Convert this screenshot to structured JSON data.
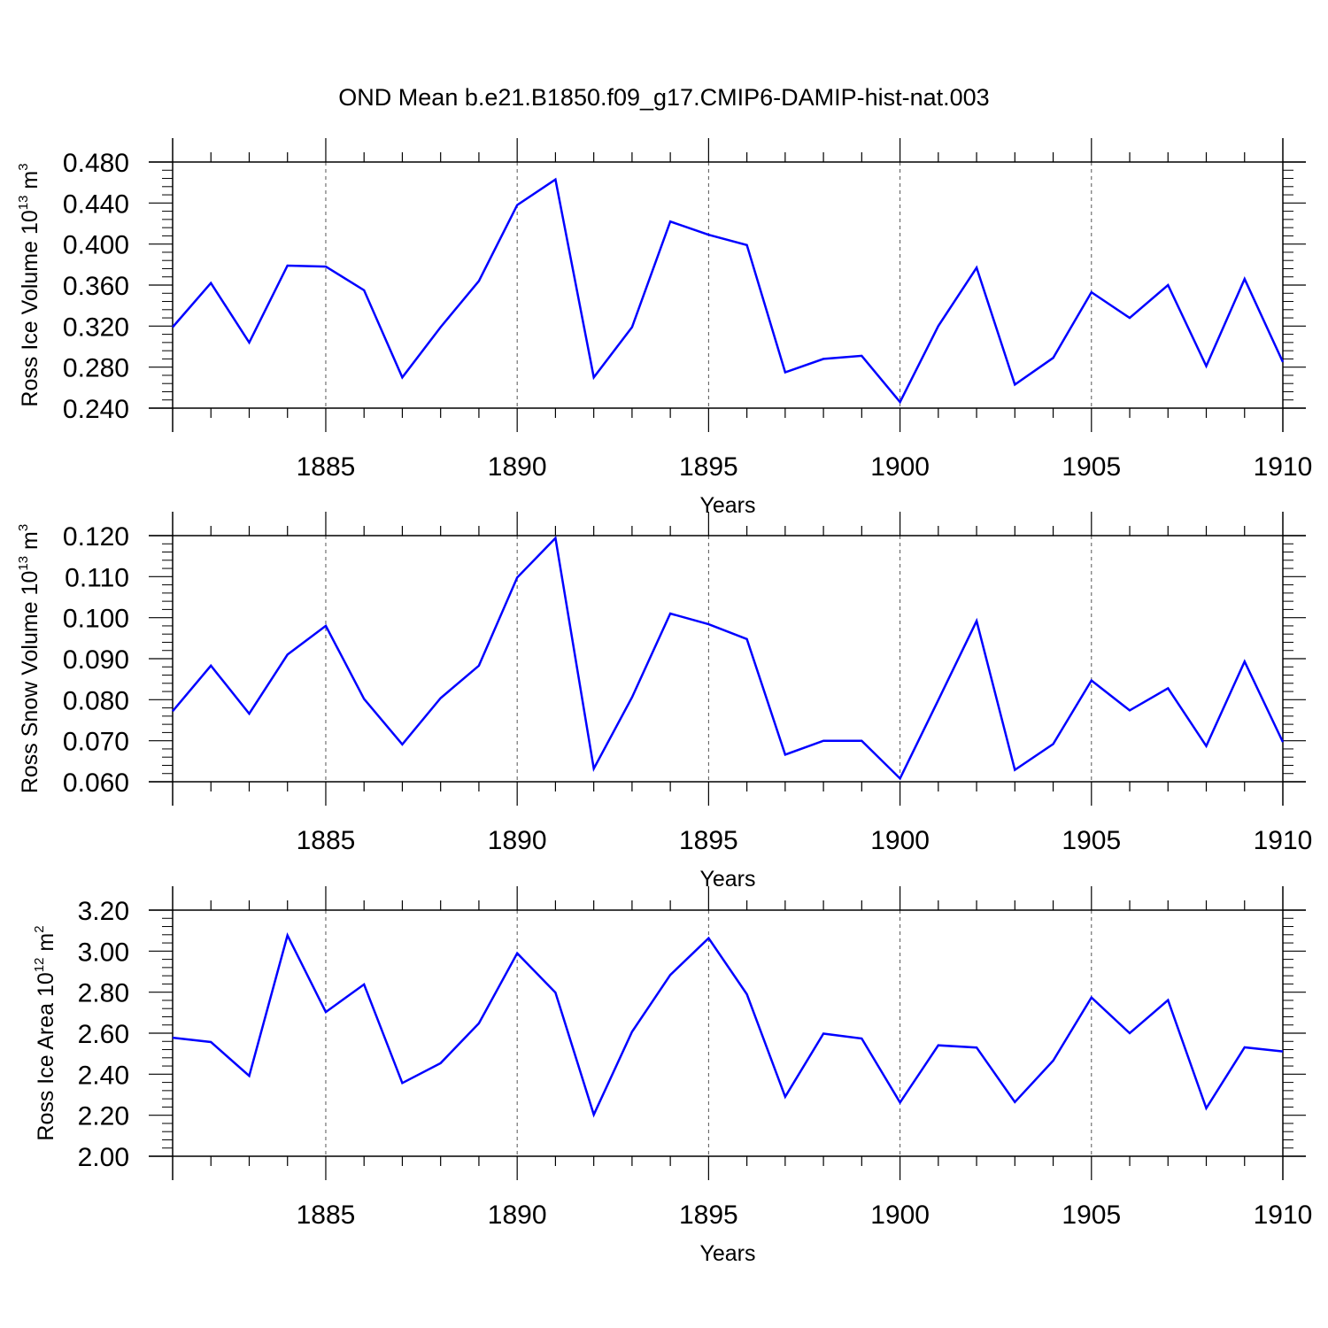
{
  "title": "OND Mean b.e21.B1850.f09_g17.CMIP6-DAMIP-hist-nat.003",
  "line_color": "#0000ff",
  "chart_data": [
    {
      "type": "line",
      "ylabel": {
        "text": "Ross Ice Volume 10",
        "exp": "13",
        "unit": " m",
        "unit_exp": "3"
      },
      "xlabel": "Years",
      "xlim": [
        1881,
        1910
      ],
      "ylim": [
        0.24,
        0.48
      ],
      "yticks": [
        0.24,
        0.28,
        0.32,
        0.36,
        0.4,
        0.44,
        0.48
      ],
      "yticklabels": [
        "0.240",
        "0.280",
        "0.320",
        "0.360",
        "0.400",
        "0.440",
        "0.480"
      ],
      "xticks": [
        1885,
        1890,
        1895,
        1900,
        1905,
        1910
      ],
      "xticklabels": [
        "1885",
        "1890",
        "1895",
        "1900",
        "1905",
        "1910"
      ],
      "grid": "vertical dashed at labeled years",
      "x": [
        1881,
        1882,
        1883,
        1884,
        1885,
        1886,
        1887,
        1888,
        1889,
        1890,
        1891,
        1892,
        1893,
        1894,
        1895,
        1896,
        1897,
        1898,
        1899,
        1900,
        1901,
        1902,
        1903,
        1904,
        1905,
        1906,
        1907,
        1908,
        1909,
        1910
      ],
      "values": [
        0.319,
        0.362,
        0.304,
        0.379,
        0.378,
        0.355,
        0.27,
        0.319,
        0.364,
        0.438,
        0.463,
        0.27,
        0.319,
        0.422,
        0.409,
        0.399,
        0.275,
        0.288,
        0.291,
        0.246,
        0.32,
        0.377,
        0.263,
        0.289,
        0.353,
        0.328,
        0.36,
        0.281,
        0.366,
        0.285
      ]
    },
    {
      "type": "line",
      "ylabel": {
        "text": "Ross Snow Volume 10",
        "exp": "13",
        "unit": " m",
        "unit_exp": "3"
      },
      "xlabel": "Years",
      "xlim": [
        1881,
        1910
      ],
      "ylim": [
        0.06,
        0.12
      ],
      "yticks": [
        0.06,
        0.07,
        0.08,
        0.09,
        0.1,
        0.11,
        0.12
      ],
      "yticklabels": [
        "0.060",
        "0.070",
        "0.080",
        "0.090",
        "0.100",
        "0.110",
        "0.120"
      ],
      "xticks": [
        1885,
        1890,
        1895,
        1900,
        1905,
        1910
      ],
      "xticklabels": [
        "1885",
        "1890",
        "1895",
        "1900",
        "1905",
        "1910"
      ],
      "grid": "vertical dashed at labeled years",
      "x": [
        1881,
        1882,
        1883,
        1884,
        1885,
        1886,
        1887,
        1888,
        1889,
        1890,
        1891,
        1892,
        1893,
        1894,
        1895,
        1896,
        1897,
        1898,
        1899,
        1900,
        1901,
        1902,
        1903,
        1904,
        1905,
        1906,
        1907,
        1908,
        1909,
        1910
      ],
      "values": [
        0.0772,
        0.0883,
        0.0766,
        0.091,
        0.098,
        0.0802,
        0.0691,
        0.0804,
        0.0883,
        0.1098,
        0.1194,
        0.0632,
        0.0806,
        0.101,
        0.0984,
        0.0948,
        0.0666,
        0.07,
        0.07,
        0.0608,
        0.0799,
        0.0992,
        0.0629,
        0.0692,
        0.0847,
        0.0774,
        0.0828,
        0.0687,
        0.0893,
        0.0697
      ]
    },
    {
      "type": "line",
      "ylabel": {
        "text": "Ross Ice Area 10",
        "exp": "12",
        "unit": " m",
        "unit_exp": "2"
      },
      "xlabel": "Years",
      "xlim": [
        1881,
        1910
      ],
      "ylim": [
        2.0,
        3.2
      ],
      "yticks": [
        2.0,
        2.2,
        2.4,
        2.6,
        2.8,
        3.0,
        3.2
      ],
      "yticklabels": [
        "2.00",
        "2.20",
        "2.40",
        "2.60",
        "2.80",
        "3.00",
        "3.20"
      ],
      "xticks": [
        1885,
        1890,
        1895,
        1900,
        1905,
        1910
      ],
      "xticklabels": [
        "1885",
        "1890",
        "1895",
        "1900",
        "1905",
        "1910"
      ],
      "grid": "vertical dashed at labeled years",
      "x": [
        1881,
        1882,
        1883,
        1884,
        1885,
        1886,
        1887,
        1888,
        1889,
        1890,
        1891,
        1892,
        1893,
        1894,
        1895,
        1896,
        1897,
        1898,
        1899,
        1900,
        1901,
        1902,
        1903,
        1904,
        1905,
        1906,
        1907,
        1908,
        1909,
        1910
      ],
      "values": [
        2.578,
        2.557,
        2.392,
        3.077,
        2.703,
        2.838,
        2.357,
        2.454,
        2.648,
        2.99,
        2.798,
        2.203,
        2.607,
        2.884,
        3.063,
        2.79,
        2.29,
        2.598,
        2.574,
        2.262,
        2.541,
        2.53,
        2.264,
        2.466,
        2.774,
        2.6,
        2.761,
        2.234,
        2.531,
        2.511
      ]
    }
  ]
}
